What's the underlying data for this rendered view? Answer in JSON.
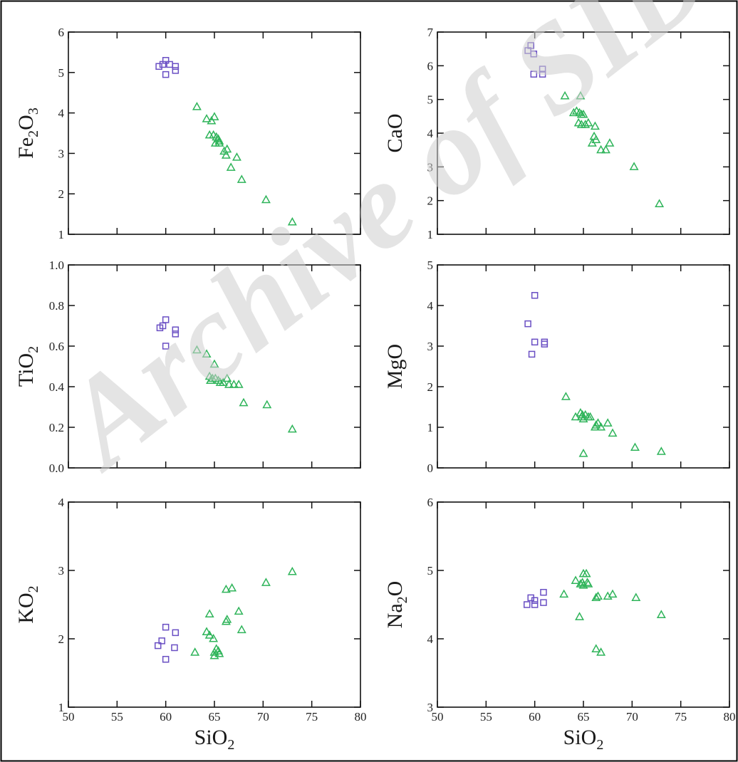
{
  "watermark": "Archive of SID",
  "colors": {
    "square": "#6a4fc4",
    "triangle": "#2fb45a",
    "axis": "#111111",
    "watermark": "#cfcfcf"
  },
  "chart_data": [
    {
      "type": "scatter",
      "panel": "top-left",
      "xlabel": "",
      "xlim": [
        50,
        80
      ],
      "x_ticks": [],
      "ylabel": "Fe2O3",
      "ylabel_main": "Fe",
      "ylabel_sub": "2",
      "ylabel_main2": "O",
      "ylabel_sub2": "3",
      "ylim": [
        1,
        6
      ],
      "y_ticks": [
        "1",
        "2",
        "3",
        "4",
        "5",
        "6"
      ],
      "series": [
        {
          "marker": "square",
          "points": [
            [
              59.3,
              5.15
            ],
            [
              59.7,
              5.2
            ],
            [
              60.0,
              5.3
            ],
            [
              60.0,
              4.95
            ],
            [
              60.4,
              5.2
            ],
            [
              61.0,
              5.15
            ],
            [
              61.0,
              5.05
            ]
          ]
        },
        {
          "marker": "triangle",
          "points": [
            [
              63.2,
              4.15
            ],
            [
              64.2,
              3.85
            ],
            [
              64.7,
              3.8
            ],
            [
              65.0,
              3.9
            ],
            [
              64.5,
              3.45
            ],
            [
              64.9,
              3.45
            ],
            [
              65.2,
              3.4
            ],
            [
              65.4,
              3.35
            ],
            [
              65.5,
              3.3
            ],
            [
              65.1,
              3.25
            ],
            [
              65.5,
              3.25
            ],
            [
              66.0,
              3.05
            ],
            [
              66.3,
              3.1
            ],
            [
              66.2,
              2.95
            ],
            [
              66.7,
              2.65
            ],
            [
              67.3,
              2.9
            ],
            [
              67.8,
              2.35
            ],
            [
              70.3,
              1.85
            ],
            [
              73.0,
              1.3
            ]
          ]
        }
      ]
    },
    {
      "type": "scatter",
      "panel": "top-right",
      "xlabel": "",
      "xlim": [
        50,
        80
      ],
      "x_ticks": [],
      "ylabel": "CaO",
      "ylabel_main": "CaO",
      "ylim": [
        1,
        7
      ],
      "y_ticks": [
        "1",
        "2",
        "3",
        "4",
        "5",
        "6",
        "7"
      ],
      "series": [
        {
          "marker": "square",
          "points": [
            [
              59.3,
              6.45
            ],
            [
              59.6,
              6.6
            ],
            [
              59.9,
              6.35
            ],
            [
              59.9,
              5.75
            ],
            [
              60.8,
              5.9
            ],
            [
              60.8,
              5.75
            ]
          ]
        },
        {
          "marker": "triangle",
          "points": [
            [
              63.1,
              5.1
            ],
            [
              64.7,
              5.1
            ],
            [
              64.0,
              4.6
            ],
            [
              64.3,
              4.65
            ],
            [
              64.6,
              4.6
            ],
            [
              64.8,
              4.55
            ],
            [
              65.0,
              4.55
            ],
            [
              64.5,
              4.3
            ],
            [
              64.8,
              4.25
            ],
            [
              65.2,
              4.25
            ],
            [
              65.5,
              4.3
            ],
            [
              66.2,
              4.2
            ],
            [
              66.1,
              3.9
            ],
            [
              66.3,
              3.8
            ],
            [
              65.9,
              3.7
            ],
            [
              66.8,
              3.5
            ],
            [
              67.3,
              3.5
            ],
            [
              67.7,
              3.7
            ],
            [
              70.2,
              3.0
            ],
            [
              72.8,
              1.9
            ]
          ]
        }
      ]
    },
    {
      "type": "scatter",
      "panel": "middle-left",
      "xlabel": "",
      "xlim": [
        50,
        80
      ],
      "x_ticks": [],
      "ylabel": "TiO2",
      "ylabel_main": "TiO",
      "ylabel_sub": "2",
      "ylim": [
        0,
        1
      ],
      "y_ticks": [
        "0.0",
        "0.2",
        "0.4",
        "0.6",
        "0.8",
        "1.0"
      ],
      "series": [
        {
          "marker": "square",
          "points": [
            [
              59.4,
              0.69
            ],
            [
              59.7,
              0.7
            ],
            [
              60.0,
              0.73
            ],
            [
              60.0,
              0.6
            ],
            [
              61.0,
              0.68
            ],
            [
              61.0,
              0.66
            ]
          ]
        },
        {
          "marker": "triangle",
          "points": [
            [
              63.2,
              0.58
            ],
            [
              64.2,
              0.56
            ],
            [
              65.0,
              0.51
            ],
            [
              64.5,
              0.45
            ],
            [
              64.8,
              0.44
            ],
            [
              64.6,
              0.43
            ],
            [
              65.1,
              0.44
            ],
            [
              65.4,
              0.43
            ],
            [
              65.6,
              0.42
            ],
            [
              65.9,
              0.42
            ],
            [
              66.3,
              0.44
            ],
            [
              66.5,
              0.41
            ],
            [
              67.0,
              0.41
            ],
            [
              67.5,
              0.41
            ],
            [
              68.0,
              0.32
            ],
            [
              70.4,
              0.31
            ],
            [
              73.0,
              0.19
            ]
          ]
        }
      ]
    },
    {
      "type": "scatter",
      "panel": "middle-right",
      "xlabel": "",
      "xlim": [
        50,
        80
      ],
      "x_ticks": [],
      "ylabel": "MgO",
      "ylabel_main": "MgO",
      "ylim": [
        0,
        5
      ],
      "y_ticks": [
        "0",
        "1",
        "2",
        "3",
        "4",
        "5"
      ],
      "series": [
        {
          "marker": "square",
          "points": [
            [
              59.3,
              3.55
            ],
            [
              59.7,
              2.8
            ],
            [
              60.0,
              3.1
            ],
            [
              60.0,
              4.25
            ],
            [
              61.0,
              3.1
            ],
            [
              61.0,
              3.05
            ]
          ]
        },
        {
          "marker": "triangle",
          "points": [
            [
              63.2,
              1.75
            ],
            [
              64.2,
              1.25
            ],
            [
              64.7,
              1.35
            ],
            [
              64.9,
              1.3
            ],
            [
              64.8,
              1.25
            ],
            [
              65.2,
              1.3
            ],
            [
              65.5,
              1.25
            ],
            [
              65.0,
              1.2
            ],
            [
              65.7,
              1.25
            ],
            [
              66.3,
              1.05
            ],
            [
              66.5,
              1.1
            ],
            [
              66.8,
              1.0
            ],
            [
              66.2,
              1.0
            ],
            [
              67.5,
              1.1
            ],
            [
              68.0,
              0.85
            ],
            [
              65.0,
              0.35
            ],
            [
              70.3,
              0.5
            ],
            [
              73.0,
              0.4
            ]
          ]
        }
      ]
    },
    {
      "type": "scatter",
      "panel": "bottom-left",
      "xlabel": "SiO2",
      "xlabel_main": "SiO",
      "xlabel_sub": "2",
      "xlim": [
        50,
        80
      ],
      "x_ticks": [
        "50",
        "55",
        "60",
        "65",
        "70",
        "75",
        "80"
      ],
      "ylabel": "KO2",
      "ylabel_main": "KO",
      "ylabel_sub": "2",
      "ylim": [
        1,
        4
      ],
      "y_ticks": [
        "1",
        "2",
        "3",
        "4"
      ],
      "series": [
        {
          "marker": "square",
          "points": [
            [
              59.2,
              1.9
            ],
            [
              59.6,
              1.97
            ],
            [
              60.0,
              2.17
            ],
            [
              60.0,
              1.7
            ],
            [
              60.9,
              1.87
            ],
            [
              61.0,
              2.09
            ]
          ]
        },
        {
          "marker": "triangle",
          "points": [
            [
              63.0,
              1.8
            ],
            [
              64.2,
              2.1
            ],
            [
              64.5,
              2.36
            ],
            [
              64.5,
              2.05
            ],
            [
              64.9,
              2.0
            ],
            [
              65.0,
              1.8
            ],
            [
              65.2,
              1.85
            ],
            [
              65.4,
              1.82
            ],
            [
              65.5,
              1.78
            ],
            [
              65.0,
              1.75
            ],
            [
              66.2,
              2.25
            ],
            [
              66.3,
              2.28
            ],
            [
              66.2,
              2.72
            ],
            [
              66.8,
              2.74
            ],
            [
              67.5,
              2.4
            ],
            [
              67.8,
              2.13
            ],
            [
              70.3,
              2.82
            ],
            [
              73.0,
              2.98
            ]
          ]
        }
      ]
    },
    {
      "type": "scatter",
      "panel": "bottom-right",
      "xlabel": "SiO2",
      "xlabel_main": "SiO",
      "xlabel_sub": "2",
      "xlim": [
        50,
        80
      ],
      "x_ticks": [
        "50",
        "55",
        "60",
        "65",
        "70",
        "75",
        "80"
      ],
      "ylabel": "Na2O",
      "ylabel_main": "Na",
      "ylabel_sub": "2",
      "ylabel_main2": "O",
      "ylim": [
        3,
        6
      ],
      "y_ticks": [
        "3",
        "4",
        "5",
        "6"
      ],
      "series": [
        {
          "marker": "square",
          "points": [
            [
              59.2,
              4.5
            ],
            [
              59.6,
              4.6
            ],
            [
              60.0,
              4.5
            ],
            [
              60.0,
              4.56
            ],
            [
              60.9,
              4.53
            ],
            [
              60.9,
              4.68
            ]
          ]
        },
        {
          "marker": "triangle",
          "points": [
            [
              63.0,
              4.65
            ],
            [
              64.2,
              4.85
            ],
            [
              64.7,
              4.8
            ],
            [
              65.0,
              4.95
            ],
            [
              65.3,
              4.95
            ],
            [
              65.4,
              4.82
            ],
            [
              64.9,
              4.82
            ],
            [
              65.0,
              4.78
            ],
            [
              65.5,
              4.8
            ],
            [
              64.6,
              4.32
            ],
            [
              66.3,
              4.6
            ],
            [
              66.5,
              4.62
            ],
            [
              67.5,
              4.62
            ],
            [
              68.0,
              4.65
            ],
            [
              70.4,
              4.6
            ],
            [
              66.3,
              3.85
            ],
            [
              66.8,
              3.8
            ],
            [
              73.0,
              4.35
            ]
          ]
        }
      ]
    }
  ]
}
